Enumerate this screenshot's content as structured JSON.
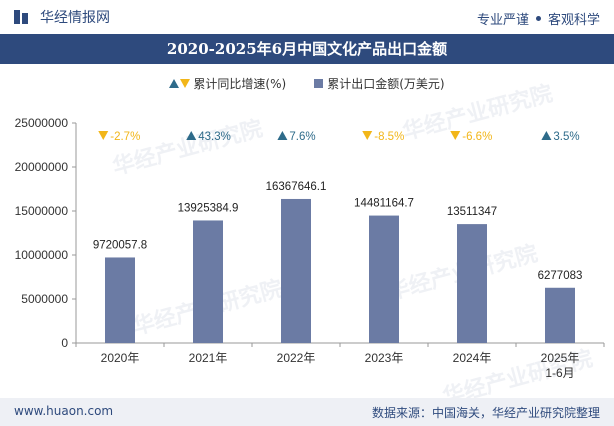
{
  "header": {
    "brand": "华经情报网",
    "slogan_left": "专业严谨",
    "slogan_right": "客观科学"
  },
  "title": "2020-2025年6月中国文化产品出口金额",
  "legend": {
    "rate_label": "累计同比增速(%)",
    "value_label": "累计出口金额(万美元)"
  },
  "watermark": "华经产业研究院",
  "footer": {
    "website": "www.huaon.com",
    "source": "数据来源：中国海关，华经产业研究院整理"
  },
  "colors": {
    "bar": "#6b7ba4",
    "up": "#2e6b8a",
    "down": "#f2b619",
    "title_bg": "#2e4a7d"
  },
  "chart_data": {
    "type": "bar",
    "categories": [
      "2020年",
      "2021年",
      "2022年",
      "2023年",
      "2024年",
      "2025年\n1-6月"
    ],
    "series": [
      {
        "name": "累计出口金额(万美元)",
        "values": [
          9720057.8,
          13925384.9,
          16367646.1,
          14481164.7,
          13511347,
          6277083
        ]
      }
    ],
    "value_labels": [
      "9720057.8",
      "13925384.9",
      "16367646.1",
      "14481164.7",
      "13511347",
      "6277083"
    ],
    "rates": [
      {
        "value": -2.7,
        "label": "-2.7%",
        "direction": "down"
      },
      {
        "value": 43.3,
        "label": "43.3%",
        "direction": "up"
      },
      {
        "value": 7.6,
        "label": "7.6%",
        "direction": "up"
      },
      {
        "value": -8.5,
        "label": "-8.5%",
        "direction": "down"
      },
      {
        "value": -6.6,
        "label": "-6.6%",
        "direction": "down"
      },
      {
        "value": 3.5,
        "label": "3.5%",
        "direction": "up"
      }
    ],
    "ylim": [
      0,
      25000000
    ],
    "yticks": [
      "0",
      "5000000",
      "10000000",
      "15000000",
      "20000000",
      "25000000"
    ],
    "grid": false
  }
}
